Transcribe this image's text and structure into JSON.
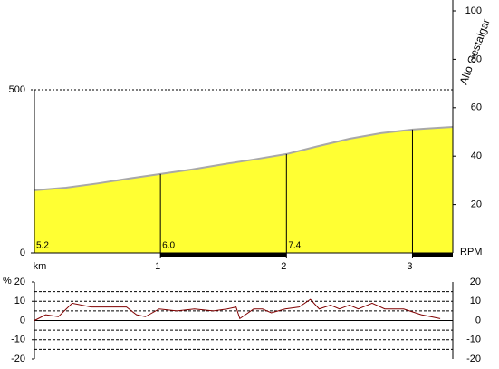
{
  "chart_data": [
    {
      "type": "area",
      "color": "#ffff33",
      "line_color": "#a8a8a8",
      "x": [
        0,
        0.25,
        0.5,
        0.75,
        1,
        1.25,
        1.5,
        1.75,
        2,
        2.25,
        2.5,
        2.75,
        3,
        3.1,
        3.32
      ],
      "values": [
        192,
        200,
        213,
        228,
        242,
        256,
        272,
        287,
        303,
        327,
        350,
        367,
        378,
        381,
        386
      ],
      "xlim": [
        0,
        3.32
      ],
      "xticks": [
        1,
        2,
        3
      ],
      "xlabel": "km",
      "ylim": [
        0,
        500
      ],
      "yticks": [
        0,
        500
      ],
      "y2lim": [
        0,
        100
      ],
      "y2ticks": [
        20,
        40,
        60,
        80,
        100
      ],
      "y2label": "RPM",
      "segment_gradients": {
        "x": [
          0,
          1,
          2
        ],
        "values": [
          5.2,
          6.0,
          7.4
        ],
        "value_labels": [
          "5.2",
          "6.0",
          "7.4"
        ]
      },
      "annotation": {
        "x": 3.32,
        "text": "Alto Gestalgar"
      }
    },
    {
      "type": "line",
      "color": "#800000",
      "x": [
        0,
        0.09,
        0.19,
        0.3,
        0.45,
        0.66,
        0.73,
        0.81,
        0.88,
        0.99,
        1.13,
        1.27,
        1.42,
        1.53,
        1.6,
        1.63,
        1.74,
        1.81,
        1.88,
        1.99,
        2.1,
        2.19,
        2.26,
        2.35,
        2.42,
        2.5,
        2.57,
        2.68,
        2.78,
        2.93,
        3.07,
        3.22
      ],
      "values": [
        0,
        3,
        2,
        9,
        7,
        7,
        7,
        3,
        2,
        6,
        5,
        6,
        5,
        6,
        7,
        1,
        6,
        6,
        4,
        6,
        7,
        11,
        6,
        8,
        6,
        8,
        6,
        9,
        6,
        6,
        3,
        1
      ],
      "xlim": [
        0,
        3.32
      ],
      "ylabel": "%",
      "ylim": [
        -20,
        20
      ],
      "yticks": [
        -20,
        -10,
        0,
        10,
        20
      ],
      "grid_yticks": [
        -15,
        -10,
        -5,
        5,
        10,
        15
      ]
    }
  ]
}
